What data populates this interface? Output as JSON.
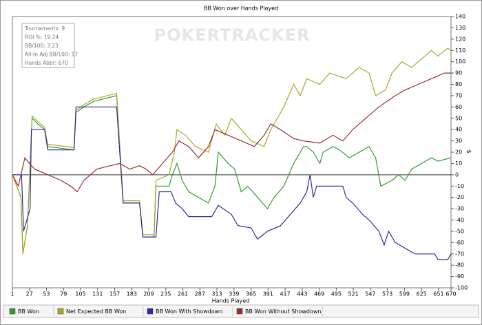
{
  "chart_data": {
    "type": "line",
    "title": "BB Won over Hands Played",
    "x_label": "Hands Played",
    "y_label": "$",
    "watermark": "POKERTRACKER",
    "info": [
      "Tournaments: 9",
      "ROI %: 19.24",
      "BB/100: 3.23",
      "All-In Adj BB/100: 17",
      "Hands Abbr: 670"
    ],
    "xlim": [
      1,
      670
    ],
    "xticks": [
      1,
      27,
      53,
      79,
      105,
      131,
      157,
      183,
      209,
      235,
      261,
      287,
      313,
      339,
      365,
      391,
      417,
      443,
      469,
      495,
      521,
      547,
      573,
      599,
      625,
      651,
      670
    ],
    "ylim": [
      -100,
      140
    ],
    "yticks": [
      -100,
      -90,
      -80,
      -70,
      -60,
      -50,
      -40,
      -30,
      -20,
      -10,
      0,
      10,
      20,
      30,
      40,
      50,
      60,
      70,
      80,
      90,
      100,
      110,
      120,
      130,
      140
    ],
    "grid": false,
    "legend": "bottom",
    "series": [
      {
        "name": "BB Won",
        "color": "#2e9b2e",
        "x": [
          1,
          14,
          17,
          24,
          31,
          40,
          50,
          55,
          95,
          98,
          110,
          125,
          160,
          170,
          195,
          200,
          217,
          220,
          240,
          245,
          252,
          260,
          270,
          285,
          300,
          310,
          315,
          330,
          340,
          350,
          360,
          375,
          390,
          400,
          415,
          430,
          445,
          450,
          460,
          470,
          475,
          490,
          500,
          515,
          530,
          545,
          555,
          563,
          580,
          590,
          600,
          610,
          625,
          640,
          650,
          670
        ],
        "values": [
          0,
          -20,
          -70,
          -45,
          50,
          45,
          40,
          25,
          22,
          55,
          60,
          65,
          70,
          -25,
          -25,
          -55,
          -55,
          -10,
          -10,
          0,
          10,
          -5,
          -15,
          -20,
          -25,
          -10,
          20,
          10,
          5,
          -15,
          -10,
          -20,
          -30,
          -20,
          -10,
          10,
          25,
          25,
          20,
          10,
          20,
          25,
          22,
          15,
          20,
          25,
          15,
          -10,
          -5,
          0,
          -5,
          5,
          10,
          15,
          12,
          15
        ]
      },
      {
        "name": "Net Expected BB Won",
        "color": "#a8a82a",
        "x": [
          1,
          14,
          17,
          24,
          31,
          40,
          50,
          55,
          95,
          98,
          110,
          125,
          160,
          170,
          195,
          200,
          217,
          220,
          240,
          248,
          252,
          265,
          280,
          300,
          312,
          325,
          335,
          350,
          365,
          385,
          395,
          415,
          430,
          440,
          450,
          470,
          485,
          510,
          530,
          545,
          555,
          570,
          580,
          595,
          610,
          640,
          650,
          665,
          670
        ],
        "values": [
          0,
          -20,
          -70,
          -45,
          52,
          47,
          42,
          27,
          24,
          57,
          62,
          67,
          72,
          -23,
          -23,
          -53,
          -53,
          -5,
          0,
          20,
          40,
          35,
          25,
          20,
          45,
          35,
          50,
          40,
          30,
          25,
          40,
          60,
          80,
          70,
          85,
          80,
          90,
          85,
          95,
          90,
          70,
          75,
          90,
          100,
          95,
          110,
          105,
          112,
          110
        ]
      },
      {
        "name": "BB Won With Showdown",
        "color": "#2b2b9b",
        "x": [
          1,
          15,
          18,
          28,
          30,
          50,
          55,
          95,
          98,
          160,
          170,
          195,
          200,
          220,
          225,
          243,
          250,
          260,
          270,
          305,
          315,
          335,
          345,
          365,
          375,
          390,
          410,
          425,
          440,
          450,
          455,
          460,
          465,
          505,
          510,
          520,
          535,
          545,
          560,
          568,
          575,
          585,
          600,
          615,
          645,
          650,
          665,
          670
        ],
        "values": [
          0,
          0,
          -50,
          -30,
          40,
          40,
          22,
          22,
          60,
          60,
          -25,
          -25,
          -55,
          -55,
          -15,
          -15,
          -25,
          -30,
          -37,
          -37,
          -27,
          -35,
          -45,
          -47,
          -57,
          -50,
          -45,
          -35,
          -25,
          -15,
          0,
          -20,
          -10,
          -10,
          -20,
          -25,
          -35,
          -40,
          -50,
          -62,
          -50,
          -60,
          -65,
          -70,
          -70,
          -75,
          -75,
          -70
        ]
      },
      {
        "name": "BB Won Without Showdown",
        "color": "#9b2b2b",
        "x": [
          1,
          10,
          20,
          27,
          35,
          55,
          75,
          90,
          100,
          110,
          130,
          150,
          165,
          180,
          195,
          205,
          215,
          230,
          245,
          255,
          270,
          285,
          300,
          310,
          330,
          350,
          370,
          385,
          395,
          410,
          430,
          445,
          470,
          490,
          505,
          520,
          540,
          560,
          585,
          600,
          620,
          640,
          660,
          670
        ],
        "values": [
          0,
          -10,
          15,
          10,
          5,
          0,
          -5,
          -10,
          -15,
          -5,
          5,
          8,
          10,
          5,
          8,
          5,
          0,
          10,
          20,
          30,
          25,
          15,
          25,
          40,
          35,
          30,
          25,
          35,
          45,
          40,
          32,
          30,
          28,
          35,
          30,
          40,
          50,
          60,
          70,
          75,
          80,
          85,
          90,
          90
        ]
      }
    ]
  }
}
